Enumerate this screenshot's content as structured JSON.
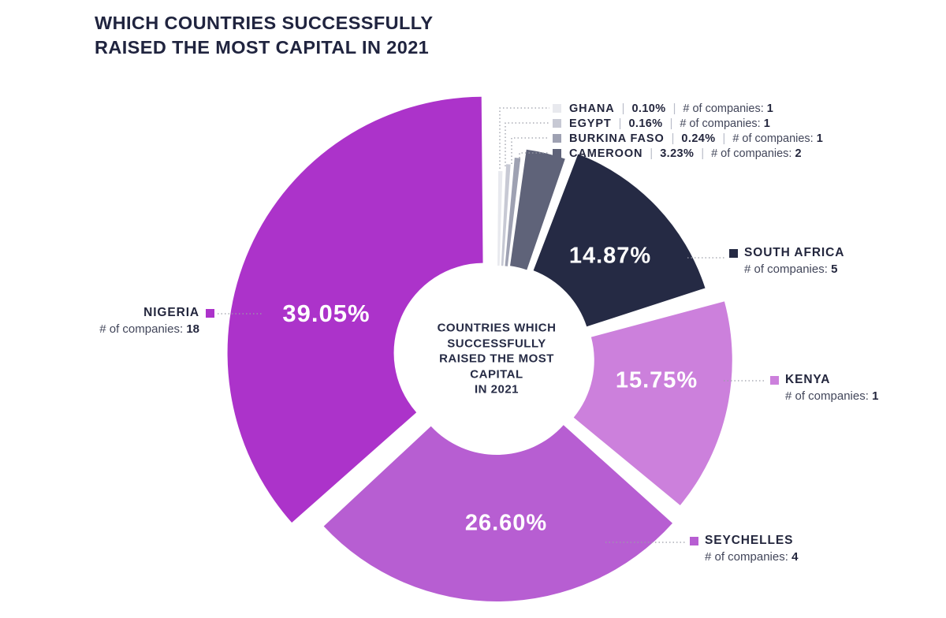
{
  "page": {
    "title_line1": "WHICH COUNTRIES SUCCESSFULLY",
    "title_line2": "RAISED THE MOST CAPITAL IN 2021"
  },
  "ui": {
    "separator": "|",
    "companies_label": "# of companies:"
  },
  "center_label": {
    "lines": [
      "COUNTRIES WHICH",
      "SUCCESSFULLY",
      "RAISED THE MOST",
      "CAPITAL",
      "IN 2021"
    ]
  },
  "chart_data": {
    "type": "pie",
    "donut": true,
    "title": "WHICH COUNTRIES SUCCESSFULLY RAISED THE MOST CAPITAL IN 2021",
    "center_text": "COUNTRIES WHICH SUCCESSFULLY RAISED THE MOST CAPITAL IN 2021",
    "unit": "percent of capital raised in 2021",
    "legend_position": "callouts",
    "slices": [
      {
        "name": "GHANA",
        "value": 0.1,
        "pct_label": "0.10%",
        "companies": "1",
        "color": "#E8E9EE"
      },
      {
        "name": "EGYPT",
        "value": 0.16,
        "pct_label": "0.16%",
        "companies": "1",
        "color": "#C7C9D4"
      },
      {
        "name": "BURKINA FASO",
        "value": 0.24,
        "pct_label": "0.24%",
        "companies": "1",
        "color": "#9EA1B2"
      },
      {
        "name": "CAMEROON",
        "value": 3.23,
        "pct_label": "3.23%",
        "companies": "2",
        "color": "#5F6379"
      },
      {
        "name": "SOUTH AFRICA",
        "value": 14.87,
        "pct_label": "14.87%",
        "companies": "5",
        "color": "#252A44"
      },
      {
        "name": "KENYA",
        "value": 15.75,
        "pct_label": "15.75%",
        "companies": "1",
        "color": "#CC80DC"
      },
      {
        "name": "SEYCHELLES",
        "value": 26.6,
        "pct_label": "26.60%",
        "companies": "4",
        "color": "#B75ED2"
      },
      {
        "name": "NIGERIA",
        "value": 39.05,
        "pct_label": "39.05%",
        "companies": "18",
        "color": "#AC33CA"
      }
    ]
  }
}
